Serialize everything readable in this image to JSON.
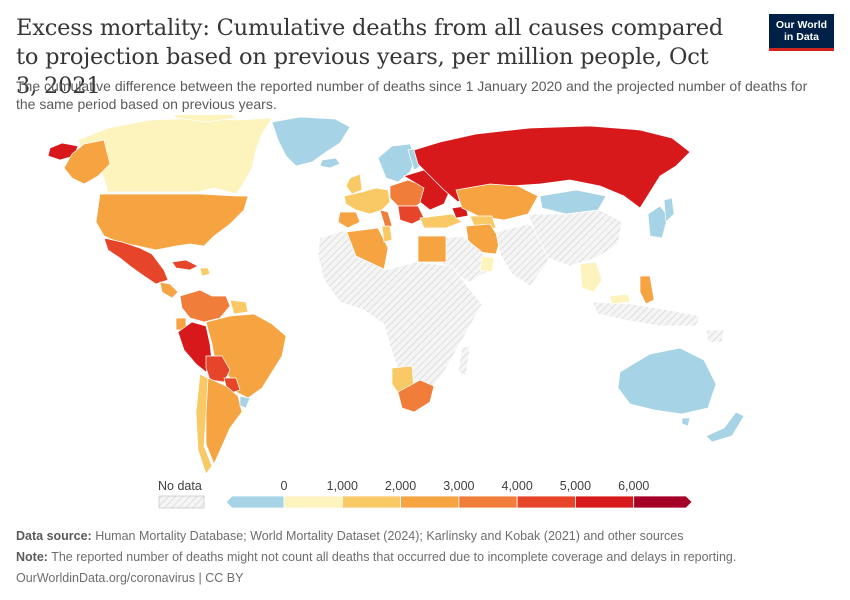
{
  "title": "Excess mortality: Cumulative deaths from all causes compared to projection based on previous years, per million people, Oct 3, 2021",
  "subtitle": "The cumulative difference between the reported number of deaths since 1 January 2020 and the projected number of deaths for the same period based on previous years.",
  "logo": {
    "line1": "Our World",
    "line2": "in Data"
  },
  "legend": {
    "no_data_label": "No data",
    "ticks": [
      "0",
      "1,000",
      "2,000",
      "3,000",
      "4,000",
      "5,000",
      "6,000"
    ],
    "colors": [
      "#a6d4e6",
      "#fdf3bd",
      "#f8c965",
      "#f6a442",
      "#f07d3a",
      "#e6452a",
      "#d7191c",
      "#a50026"
    ]
  },
  "footer": {
    "source_label": "Data source:",
    "source_text": " Human Mortality Database; World Mortality Dataset (2024); Karlinsky and Kobak (2021) and other sources",
    "note_label": "Note:",
    "note_text": " The reported number of deaths might not count all deaths that occurred due to incomplete coverage and delays in reporting.",
    "credit": "OurWorldinData.org/coronavirus | CC BY"
  }
}
